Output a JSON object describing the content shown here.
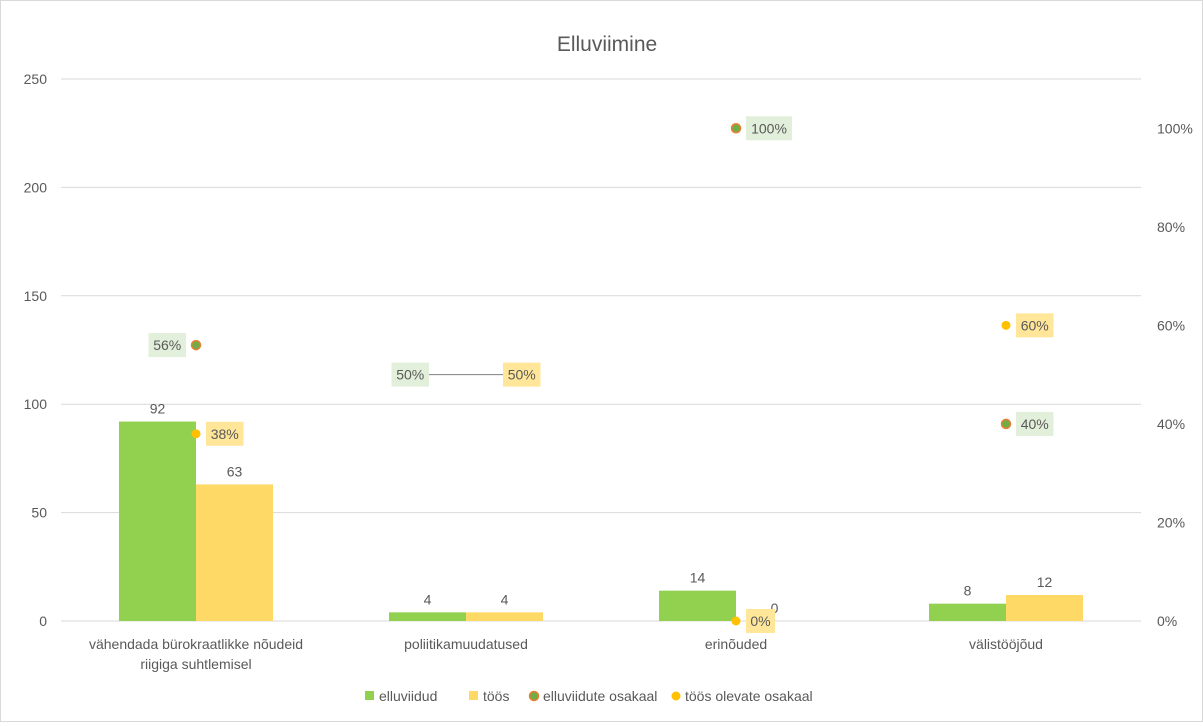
{
  "chart_data": {
    "type": "bar",
    "title": "Elluviimine",
    "categories": [
      "vähendada bürokraatlikke nõudeid riigiga suhtlemisel",
      "poliitikamuudatused",
      "erinõuded",
      "välistööjõud"
    ],
    "category_lines": [
      [
        "vähendada bürokraatlikke nõudeid",
        "riigiga suhtlemisel"
      ],
      [
        "poliitikamuudatused"
      ],
      [
        "erinõuded"
      ],
      [
        "välistööjõud"
      ]
    ],
    "series": [
      {
        "name": "elluviidud",
        "kind": "bar",
        "axis": "left",
        "values": [
          92,
          4,
          14,
          8
        ],
        "labels": [
          "92",
          "4",
          "14",
          "8"
        ],
        "color": "#92d050"
      },
      {
        "name": "töös",
        "kind": "bar",
        "axis": "left",
        "values": [
          63,
          4,
          0,
          12
        ],
        "labels": [
          "63",
          "4",
          "0",
          "12"
        ],
        "color": "#ffd966"
      },
      {
        "name": "elluviidute osakaal",
        "kind": "point",
        "axis": "right",
        "values": [
          0.56,
          0.5,
          1.0,
          0.4
        ],
        "labels": [
          "56%",
          "50%",
          "100%",
          "40%"
        ],
        "color": "#70ad47",
        "outline": "#ed7d31",
        "label_bg": "#e2efda"
      },
      {
        "name": "töös olevate osakaal",
        "kind": "point",
        "axis": "right",
        "values": [
          0.38,
          0.5,
          0.0,
          0.6
        ],
        "labels": [
          "38%",
          "50%",
          "0%",
          "60%"
        ],
        "color": "#ffc000",
        "label_bg": "#ffe699"
      }
    ],
    "left_axis": {
      "min": 0,
      "max": 250,
      "ticks": [
        0,
        50,
        100,
        150,
        200,
        250
      ]
    },
    "right_axis": {
      "min": 0,
      "max": 1.1,
      "ticks": [
        "0%",
        "20%",
        "40%",
        "60%",
        "80%",
        "100%"
      ]
    },
    "grid": true,
    "legend_position": "bottom",
    "text_color": "#595959",
    "grid_color": "#d9d9d9"
  }
}
